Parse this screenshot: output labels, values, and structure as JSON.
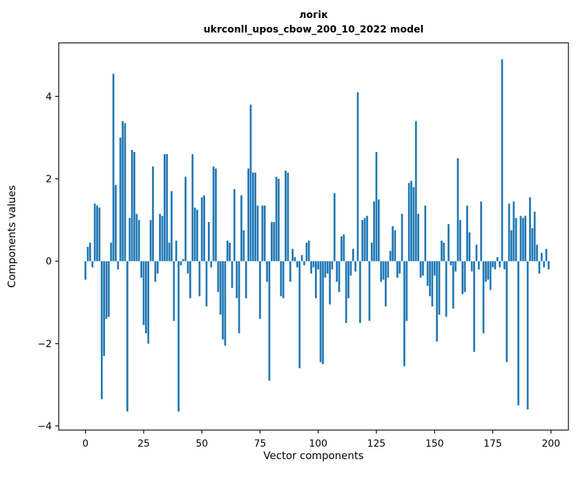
{
  "chart_data": {
    "type": "bar",
    "title": "логік",
    "subtitle": "ukrconll_upos_cbow_200_10_2022 model",
    "xlabel": "Vector components",
    "ylabel": "Components values",
    "bar_color": "#1f77b4",
    "xlim": [
      -11.5,
      207.5
    ],
    "ylim": [
      -4.1,
      5.3
    ],
    "xticks": [
      0,
      25,
      50,
      75,
      100,
      125,
      150,
      175,
      200
    ],
    "xtick_labels": [
      "0",
      "25",
      "50",
      "75",
      "100",
      "125",
      "150",
      "175",
      "200"
    ],
    "yticks": [
      -4,
      -2,
      0,
      2,
      4
    ],
    "ytick_labels": [
      "−4",
      "−2",
      "0",
      "2",
      "4"
    ],
    "x_start": 0,
    "values": [
      -0.45,
      0.35,
      0.45,
      -0.15,
      1.4,
      1.35,
      1.3,
      -3.35,
      -2.3,
      -1.4,
      -1.35,
      0.45,
      4.55,
      1.85,
      -0.2,
      3.0,
      3.4,
      3.35,
      -3.65,
      1.05,
      2.7,
      2.65,
      1.15,
      1.0,
      -0.4,
      -1.55,
      -1.75,
      -2.0,
      1.0,
      2.3,
      -0.5,
      -0.3,
      1.15,
      1.1,
      2.6,
      2.6,
      0.45,
      1.7,
      -1.45,
      0.5,
      -3.65,
      -0.1,
      0.05,
      2.05,
      -0.3,
      -0.9,
      2.6,
      1.3,
      1.25,
      -0.85,
      1.55,
      1.6,
      -1.1,
      0.95,
      -0.15,
      2.3,
      2.25,
      -0.75,
      -1.3,
      -1.9,
      -2.05,
      0.5,
      0.45,
      -0.65,
      1.75,
      -0.9,
      -1.75,
      1.6,
      0.75,
      -0.9,
      2.25,
      3.8,
      2.15,
      2.15,
      1.35,
      -1.4,
      1.35,
      1.35,
      -0.5,
      -2.9,
      0.95,
      0.95,
      2.05,
      2.0,
      -0.85,
      -0.9,
      2.2,
      2.15,
      -0.5,
      0.3,
      0.1,
      -0.15,
      -2.6,
      0.15,
      -0.1,
      0.45,
      0.5,
      -0.3,
      -0.15,
      -0.9,
      -0.2,
      -2.45,
      -2.5,
      -0.4,
      -0.3,
      -1.05,
      -0.2,
      1.65,
      -0.5,
      -0.75,
      0.6,
      0.65,
      -1.5,
      -0.9,
      -0.35,
      0.3,
      -0.25,
      4.1,
      -1.5,
      1.0,
      1.05,
      1.1,
      -1.45,
      0.45,
      1.45,
      2.65,
      1.5,
      -0.5,
      -0.45,
      -1.1,
      -0.4,
      0.25,
      0.85,
      0.75,
      -0.4,
      -0.3,
      1.15,
      -2.55,
      -1.45,
      1.9,
      1.95,
      1.8,
      3.4,
      1.15,
      -0.4,
      -0.35,
      1.35,
      -0.6,
      -0.85,
      -1.1,
      -0.35,
      -1.95,
      -1.3,
      0.5,
      0.45,
      -1.35,
      0.9,
      -0.1,
      -1.15,
      -0.25,
      2.5,
      1.0,
      -0.8,
      -0.75,
      1.35,
      0.7,
      -0.25,
      -2.2,
      0.4,
      -0.2,
      1.45,
      -1.75,
      -0.5,
      -0.45,
      -0.7,
      -0.15,
      -0.2,
      0.1,
      -0.15,
      4.9,
      -0.2,
      -2.45,
      1.4,
      0.75,
      1.45,
      1.05,
      -3.5,
      1.1,
      1.05,
      1.1,
      -3.6,
      1.55,
      0.8,
      1.2,
      0.4,
      -0.3,
      0.2,
      -0.15,
      0.3,
      -0.2
    ]
  }
}
